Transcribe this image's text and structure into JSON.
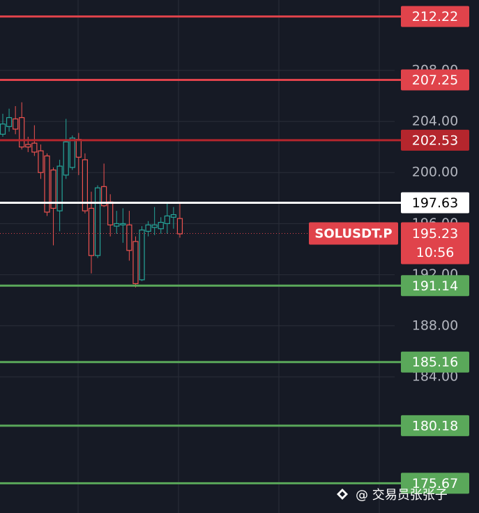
{
  "chart_data": {
    "type": "candlestick",
    "ylim": [
      173.34,
      213.51
    ],
    "yticks": [
      {
        "value": 184,
        "label": "184.00"
      },
      {
        "value": 188,
        "label": "188.00"
      },
      {
        "value": 192,
        "label": "192.00"
      },
      {
        "value": 196,
        "label": "196.00"
      },
      {
        "value": 200,
        "label": "200.00"
      },
      {
        "value": 204,
        "label": "204.00"
      },
      {
        "value": 208,
        "label": "208.00"
      }
    ],
    "grid": true,
    "up_color": "#26a69a",
    "down_color": "#ef5350",
    "open": [
      203.0,
      203.6,
      204.2,
      204.3,
      202.2,
      202.3,
      201.7,
      201.3,
      200.2,
      197.0,
      199.8,
      200.4,
      202.6,
      201.0,
      197.2,
      193.5,
      198.9,
      197.7,
      195.8,
      195.9,
      195.9,
      194.6,
      191.6,
      195.4,
      195.7,
      195.6,
      196.0,
      196.5,
      196.4
    ],
    "high": [
      204.6,
      205.0,
      205.2,
      205.5,
      202.8,
      203.7,
      202.2,
      201.5,
      200.4,
      201.0,
      204.2,
      202.9,
      203.1,
      201.5,
      198.5,
      199.0,
      200.7,
      198.3,
      197.0,
      197.2,
      197.0,
      195.0,
      195.8,
      196.2,
      197.3,
      196.5,
      197.6,
      197.3,
      197.6
    ],
    "low": [
      202.8,
      203.2,
      203.0,
      201.8,
      201.6,
      201.3,
      199.5,
      196.6,
      194.3,
      195.4,
      199.5,
      200.2,
      199.8,
      196.8,
      192.1,
      193.3,
      197.3,
      195.0,
      195.2,
      194.5,
      193.1,
      191.0,
      191.5,
      195.0,
      195.1,
      195.2,
      195.2,
      195.6,
      194.9
    ],
    "close": [
      203.8,
      204.3,
      203.4,
      202.0,
      202.0,
      201.6,
      200.0,
      196.9,
      197.2,
      200.5,
      202.4,
      202.7,
      201.2,
      197.0,
      193.5,
      198.8,
      197.4,
      195.9,
      196.0,
      196.0,
      193.9,
      191.3,
      195.5,
      195.9,
      195.9,
      196.1,
      196.6,
      196.7,
      195.2
    ],
    "levels": [
      {
        "value": 212.22,
        "color": "#e0434b",
        "text_color": "#ffffff"
      },
      {
        "value": 207.25,
        "color": "#e0434b",
        "text_color": "#ffffff"
      },
      {
        "value": 202.53,
        "color": "#b5262d",
        "text_color": "#ffffff"
      },
      {
        "value": 197.63,
        "color": "#ffffff",
        "text_color": "#000000"
      },
      {
        "value": 191.14,
        "color": "#5aa85a",
        "text_color": "#ffffff"
      },
      {
        "value": 185.16,
        "color": "#5aa85a",
        "text_color": "#ffffff"
      },
      {
        "value": 180.18,
        "color": "#5aa85a",
        "text_color": "#ffffff"
      },
      {
        "value": 175.67,
        "color": "#5aa85a",
        "text_color": "#ffffff"
      }
    ],
    "current_price": {
      "symbol": "SOLUSDT.P",
      "value": 195.23,
      "countdown": "10:56",
      "color": "#e0434b"
    },
    "watermark": "@ 交易员张张子"
  }
}
